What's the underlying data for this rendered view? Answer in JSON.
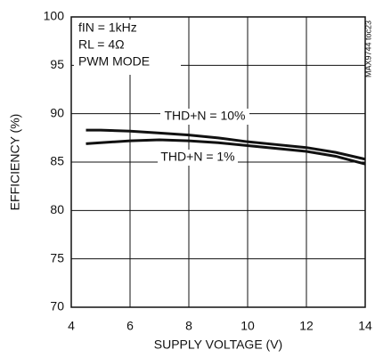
{
  "chart_data": {
    "type": "line",
    "xlabel": "SUPPLY VOLTAGE (V)",
    "ylabel": "EFFICIENCY (%)",
    "annotations": [
      "fIN = 1kHz",
      "RL = 4Ω",
      "PWM MODE"
    ],
    "side_note": "MAX9744 toc23",
    "x": [
      4.5,
      5,
      6,
      7,
      8,
      9,
      10,
      11,
      12,
      13,
      14
    ],
    "series": [
      {
        "name": "THD+N = 10%",
        "color": "#111111",
        "values": [
          88.3,
          88.3,
          88.2,
          88.0,
          87.8,
          87.5,
          87.1,
          86.8,
          86.5,
          86.0,
          85.3
        ]
      },
      {
        "name": "THD+N = 1%",
        "color": "#111111",
        "values": [
          86.9,
          87.0,
          87.2,
          87.3,
          87.2,
          87.0,
          86.7,
          86.4,
          86.1,
          85.6,
          84.8
        ]
      }
    ],
    "xlim": [
      4,
      14
    ],
    "xticks": [
      4,
      6,
      8,
      10,
      12,
      14
    ],
    "ylim": [
      70,
      100
    ],
    "yticks": [
      70,
      75,
      80,
      85,
      90,
      95,
      100
    ],
    "grid": true
  }
}
